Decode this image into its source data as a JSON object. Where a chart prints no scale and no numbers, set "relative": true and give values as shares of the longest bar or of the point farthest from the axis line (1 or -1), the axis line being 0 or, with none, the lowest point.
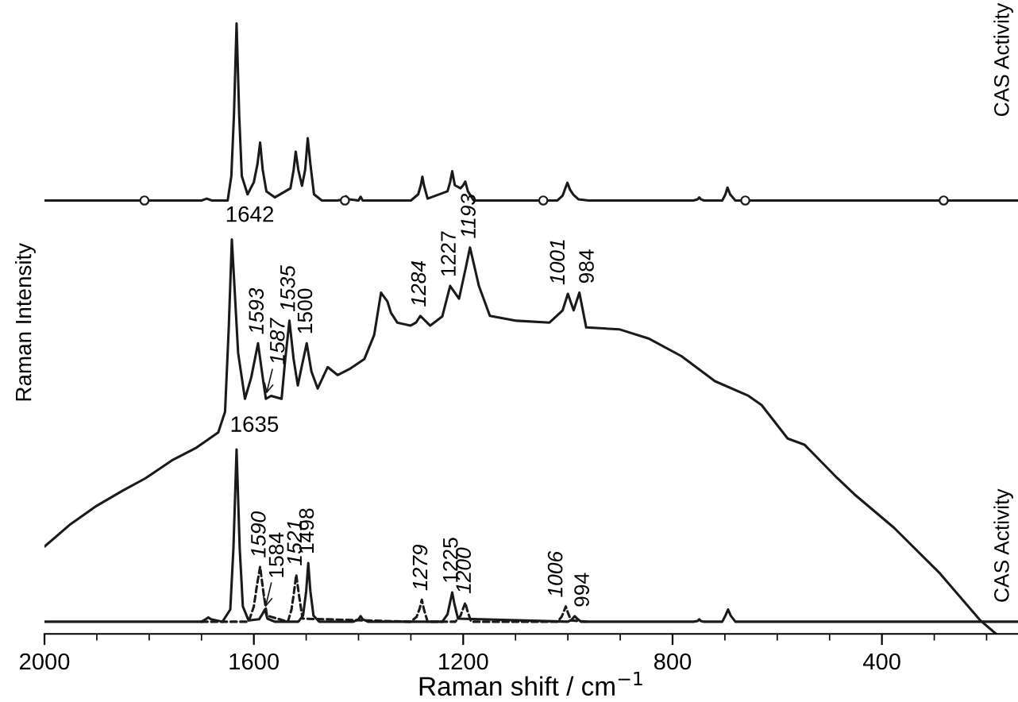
{
  "chart_data": {
    "type": "line",
    "relative": true,
    "xlabel": "Raman shift / cm$^{−1}$",
    "ylabel": "Raman Intensity",
    "y2label": "CAS Activity",
    "xlim": [
      2000,
      140
    ],
    "xticks": [
      2000,
      {
        "value": 1900,
        "label": null
      },
      {
        "value": 1800,
        "label": null
      },
      {
        "value": 1700,
        "label": null
      },
      1600,
      {
        "value": 1500,
        "label": null
      },
      {
        "value": 1400,
        "label": null
      },
      {
        "value": 1300,
        "label": null
      },
      1200,
      {
        "value": 1100,
        "label": null
      },
      {
        "value": 1000,
        "label": null
      },
      {
        "value": 900,
        "label": null
      },
      800,
      {
        "value": 700,
        "label": null
      },
      {
        "value": 600,
        "label": null
      },
      {
        "value": 500,
        "label": null
      },
      400,
      {
        "value": 300,
        "label": null
      },
      {
        "value": 200,
        "label": null
      }
    ],
    "grid": false,
    "legend": false,
    "series": [
      {
        "color": "#1a1a1a",
        "line_style": "solid",
        "x": [
          2000,
          1700,
          1690,
          1680,
          1650,
          1643,
          1638,
          1633,
          1628,
          1623,
          1612,
          1600,
          1593,
          1588,
          1583,
          1576,
          1560,
          1530,
          1524,
          1520,
          1515,
          1508,
          1502,
          1497,
          1492,
          1485,
          1470,
          1440,
          1430,
          1424,
          1418,
          1400,
          1396,
          1392,
          1300,
          1286,
          1281,
          1278,
          1275,
          1268,
          1230,
          1225,
          1221,
          1216,
          1205,
          1200,
          1196,
          1191,
          1180,
          1020,
          1010,
          1004,
          1001,
          996,
          990,
          980,
          960,
          760,
          752,
          749,
          746,
          740,
          705,
          699,
          695,
          690,
          680,
          660,
          140
        ],
        "values": [
          0.71,
          0.71,
          0.713,
          0.71,
          0.71,
          0.75,
          0.85,
          1.0,
          0.85,
          0.75,
          0.72,
          0.74,
          0.77,
          0.805,
          0.76,
          0.725,
          0.715,
          0.73,
          0.76,
          0.79,
          0.76,
          0.734,
          0.76,
          0.812,
          0.77,
          0.72,
          0.71,
          0.71,
          0.712,
          0.717,
          0.712,
          0.71,
          0.716,
          0.71,
          0.71,
          0.72,
          0.735,
          0.749,
          0.735,
          0.713,
          0.725,
          0.74,
          0.758,
          0.735,
          0.73,
          0.735,
          0.741,
          0.725,
          0.71,
          0.71,
          0.718,
          0.732,
          0.739,
          0.728,
          0.72,
          0.712,
          0.71,
          0.71,
          0.712,
          0.715,
          0.712,
          0.71,
          0.71,
          0.72,
          0.731,
          0.72,
          0.71,
          0.71,
          0.71
        ]
      },
      {
        "color": "#1a1a1a",
        "marker": "circle",
        "type": "scatter",
        "x": [
          1809,
          1426,
          1047,
          661,
          282
        ],
        "values": [
          0.71,
          0.71,
          0.71,
          0.71,
          0.71
        ]
      },
      {
        "color": "#1a1a1a",
        "line_style": "solid",
        "x": [
          2000,
          1950,
          1900,
          1850,
          1807,
          1757,
          1710,
          1668,
          1655,
          1648,
          1642,
          1630,
          1617,
          1605,
          1592,
          1583,
          1577,
          1567,
          1547,
          1540,
          1532,
          1524,
          1516,
          1508,
          1499,
          1490,
          1478,
          1459,
          1440,
          1415,
          1389,
          1370,
          1357,
          1345,
          1338,
          1326,
          1301,
          1290,
          1282,
          1263,
          1240,
          1225,
          1208,
          1195,
          1187,
          1170,
          1149,
          1098,
          1035,
          1010,
          1000,
          989,
          978,
          965,
          902,
          846,
          783,
          719,
          655,
          630,
          580,
          548,
          485,
          453,
          377,
          289,
          213,
          182
        ],
        "values": [
          0.143,
          0.18,
          0.21,
          0.235,
          0.255,
          0.284,
          0.305,
          0.33,
          0.364,
          0.5,
          0.646,
          0.46,
          0.385,
          0.42,
          0.476,
          0.42,
          0.385,
          0.39,
          0.385,
          0.45,
          0.513,
          0.45,
          0.407,
          0.44,
          0.476,
          0.43,
          0.402,
          0.437,
          0.424,
          0.435,
          0.45,
          0.49,
          0.559,
          0.545,
          0.526,
          0.51,
          0.505,
          0.51,
          0.521,
          0.505,
          0.52,
          0.57,
          0.549,
          0.6,
          0.633,
          0.57,
          0.521,
          0.513,
          0.51,
          0.53,
          0.557,
          0.53,
          0.559,
          0.502,
          0.499,
          0.484,
          0.455,
          0.414,
          0.39,
          0.375,
          0.32,
          0.31,
          0.255,
          0.229,
          0.174,
          0.099,
          0.023,
          0.0
        ]
      },
      {
        "color": "#1a1a1a",
        "line_style": "dashed",
        "x": [
          1700,
          1610,
          1600,
          1594,
          1588,
          1582,
          1575,
          1535,
          1528,
          1523,
          1519,
          1514,
          1507,
          1300,
          1289,
          1283,
          1279,
          1275,
          1268,
          1215,
          1205,
          1200,
          1196,
          1192,
          1185,
          1020,
          1012,
          1007,
          1004,
          1000,
          994,
          960
        ],
        "values": [
          0.02,
          0.02,
          0.045,
          0.08,
          0.11,
          0.07,
          0.03,
          0.02,
          0.04,
          0.07,
          0.097,
          0.065,
          0.025,
          0.02,
          0.028,
          0.042,
          0.056,
          0.04,
          0.02,
          0.02,
          0.03,
          0.042,
          0.051,
          0.038,
          0.02,
          0.02,
          0.028,
          0.038,
          0.045,
          0.035,
          0.022,
          0.02
        ]
      },
      {
        "color": "#1a1a1a",
        "line_style": "solid",
        "x": [
          2000,
          1700,
          1692,
          1687,
          1682,
          1660,
          1645,
          1639,
          1633,
          1627,
          1621,
          1610,
          1590,
          1584,
          1579,
          1574,
          1560,
          1515,
          1506,
          1500,
          1496,
          1492,
          1486,
          1475,
          1410,
          1400,
          1396,
          1392,
          1382,
          1240,
          1230,
          1225,
          1221,
          1217,
          1210,
          1000,
          993,
          987,
          981,
          975,
          760,
          752,
          749,
          746,
          740,
          705,
          699,
          694,
          689,
          680,
          140
        ],
        "values": [
          0.02,
          0.02,
          0.024,
          0.027,
          0.024,
          0.02,
          0.04,
          0.14,
          0.302,
          0.14,
          0.045,
          0.022,
          0.024,
          0.032,
          0.04,
          0.025,
          0.02,
          0.02,
          0.03,
          0.07,
          0.116,
          0.07,
          0.03,
          0.02,
          0.02,
          0.024,
          0.029,
          0.024,
          0.02,
          0.02,
          0.032,
          0.052,
          0.068,
          0.05,
          0.025,
          0.02,
          0.023,
          0.029,
          0.024,
          0.02,
          0.02,
          0.021,
          0.024,
          0.021,
          0.02,
          0.02,
          0.03,
          0.04,
          0.03,
          0.02,
          0.02
        ]
      }
    ],
    "annotations": [
      {
        "text": "1642",
        "x": 1642,
        "y": 0.646
      },
      {
        "text": "1593",
        "x": 1592,
        "y": 0.476
      },
      {
        "text": "1587",
        "x": 1577,
        "y": 0.39
      },
      {
        "text": "1535",
        "x": 1532,
        "y": 0.513
      },
      {
        "text": "1500",
        "x": 1499,
        "y": 0.476
      },
      {
        "text": "1284",
        "x": 1282,
        "y": 0.521
      },
      {
        "text": "1227",
        "x": 1225,
        "y": 0.57
      },
      {
        "text": "1193",
        "x": 1187,
        "y": 0.633
      },
      {
        "text": "1001",
        "x": 1000,
        "y": 0.557
      },
      {
        "text": "984",
        "x": 978,
        "y": 0.559
      },
      {
        "text": "1635",
        "x": 1633,
        "y": 0.302
      },
      {
        "text": "1590",
        "x": 1588,
        "y": 0.11
      },
      {
        "text": "1584",
        "x": 1579,
        "y": 0.04
      },
      {
        "text": "1521",
        "x": 1519,
        "y": 0.097
      },
      {
        "text": "1498",
        "x": 1496,
        "y": 0.116
      },
      {
        "text": "1279",
        "x": 1279,
        "y": 0.056
      },
      {
        "text": "1225",
        "x": 1221,
        "y": 0.068
      },
      {
        "text": "1200",
        "x": 1196,
        "y": 0.051
      },
      {
        "text": "1006",
        "x": 1004,
        "y": 0.045
      },
      {
        "text": "994",
        "x": 987,
        "y": 0.029
      },
      "CAS Activity"
    ]
  }
}
